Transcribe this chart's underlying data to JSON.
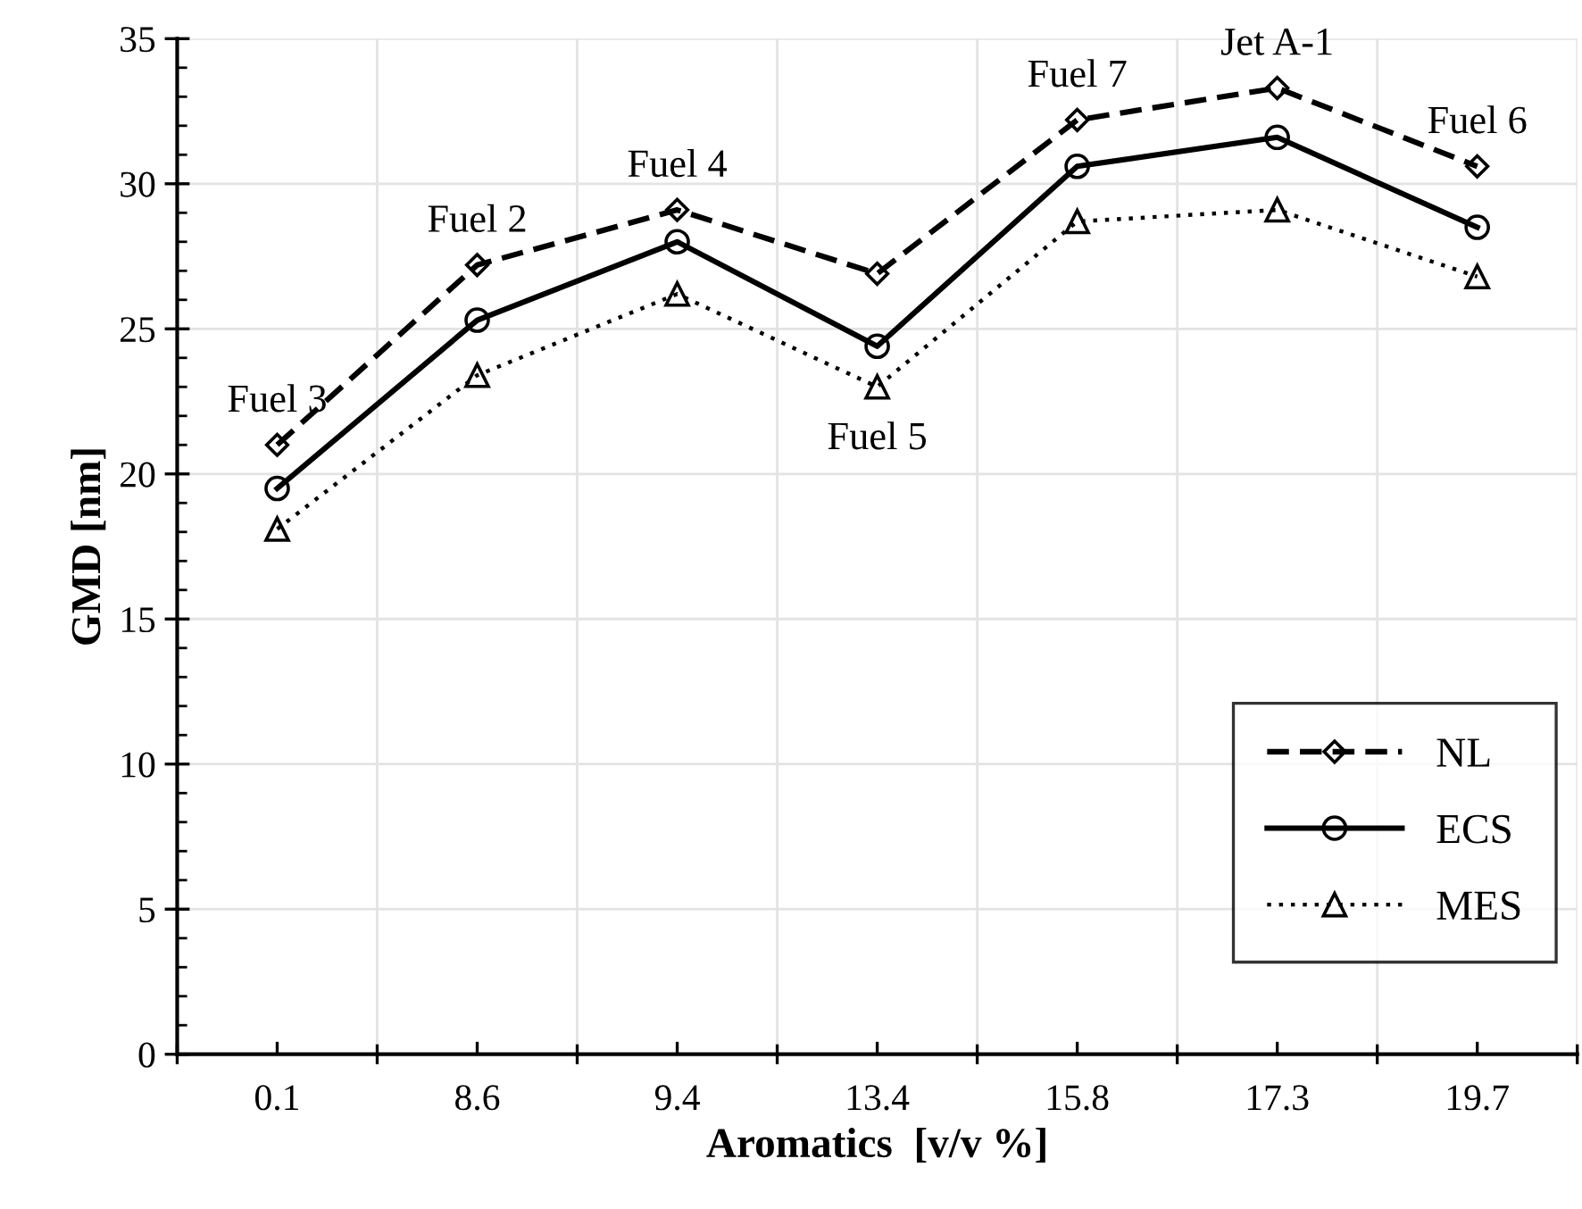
{
  "chart_data": {
    "type": "line",
    "xlabel": "Aromatics  [v/v %]",
    "ylabel": "GMD [nm]",
    "categories": [
      "0.1",
      "8.6",
      "9.4",
      "13.4",
      "15.8",
      "17.3",
      "19.7"
    ],
    "series": [
      {
        "name": "NL",
        "color": "#000000",
        "line_style": "dashed",
        "marker": "diamond",
        "values": [
          21.0,
          27.2,
          29.1,
          26.9,
          32.2,
          33.3,
          30.6
        ]
      },
      {
        "name": "ECS",
        "color": "#000000",
        "line_style": "solid",
        "marker": "circle",
        "values": [
          19.5,
          25.3,
          28.0,
          24.4,
          30.6,
          31.6,
          28.5
        ]
      },
      {
        "name": "MES",
        "color": "#000000",
        "line_style": "dotted",
        "marker": "triangle",
        "values": [
          18.1,
          23.4,
          26.2,
          23.0,
          28.7,
          29.1,
          26.8
        ]
      }
    ],
    "ylim": [
      0,
      35
    ],
    "yticks": [
      0,
      5,
      10,
      15,
      20,
      25,
      30,
      35
    ],
    "grid": true,
    "legend": "bottom right",
    "annotations": [
      {
        "text": "Fuel 3",
        "x": "0.1",
        "y": 21.0
      },
      {
        "text": "Fuel 2",
        "x": "8.6",
        "y": 27.2
      },
      {
        "text": "Fuel 4",
        "x": "9.4",
        "y": 29.1
      },
      {
        "text": "Fuel 5",
        "x": "13.4",
        "y": 23.0
      },
      {
        "text": "Fuel 7",
        "x": "15.8",
        "y": 32.2
      },
      {
        "text": "Jet A-1",
        "x": "17.3",
        "y": 33.3
      },
      {
        "text": "Fuel 6",
        "x": "19.7",
        "y": 30.6
      }
    ]
  }
}
